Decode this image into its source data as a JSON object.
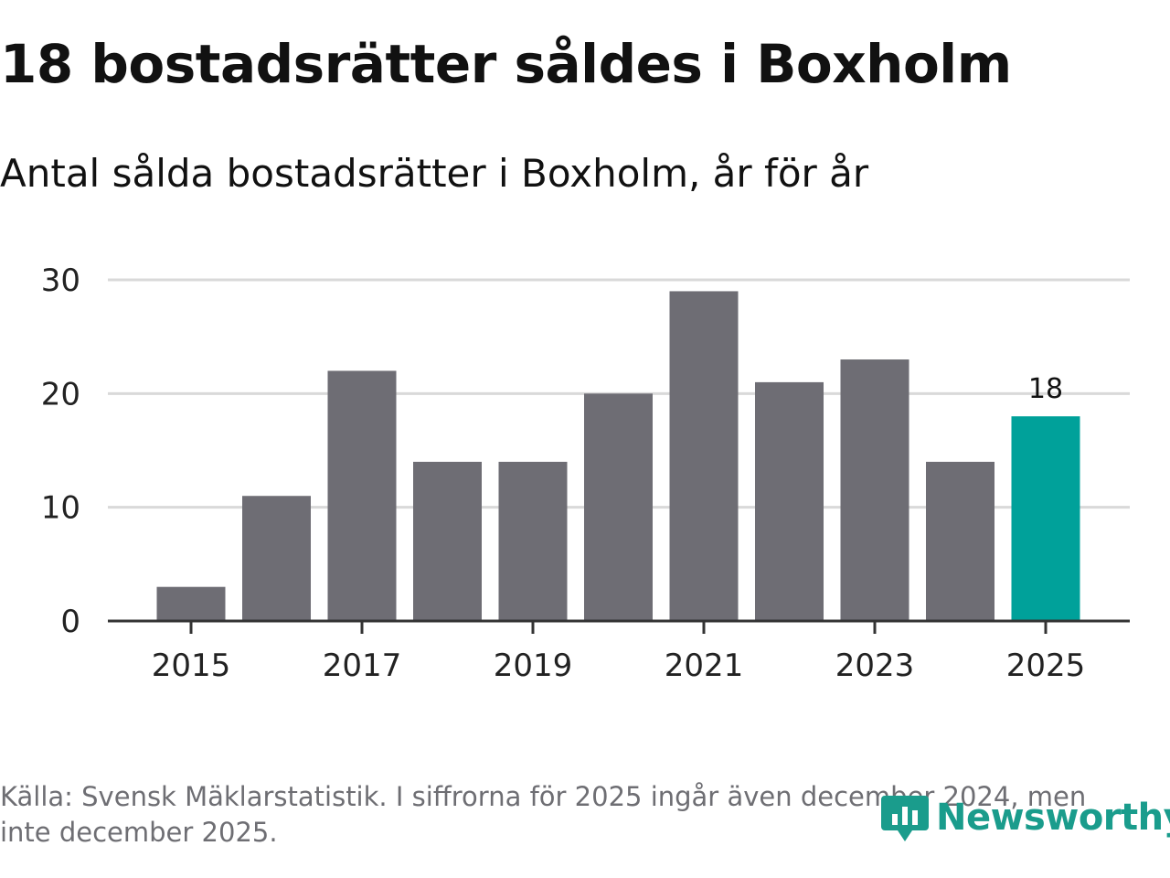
{
  "header": {
    "title": "18 bostadsrätter såldes i Boxholm",
    "subtitle": "Antal sålda bostadsrätter i Boxholm, år för år"
  },
  "chart_data": {
    "type": "bar",
    "title": "18 bostadsrätter såldes i Boxholm",
    "subtitle": "Antal sålda bostadsrätter i Boxholm, år för år",
    "categories": [
      "2015",
      "2016",
      "2017",
      "2018",
      "2019",
      "2020",
      "2021",
      "2022",
      "2023",
      "2024",
      "2025"
    ],
    "values": [
      3,
      11,
      22,
      14,
      14,
      20,
      29,
      21,
      23,
      14,
      18
    ],
    "x_tick_labels": [
      "2015",
      "2017",
      "2019",
      "2021",
      "2023",
      "2025"
    ],
    "y_ticks": [
      0,
      10,
      20,
      30
    ],
    "ylim": [
      0,
      30
    ],
    "xlabel": "",
    "ylabel": "",
    "grid": true,
    "highlight_category": "2025",
    "highlight_label": "18",
    "colors": {
      "bar": "#6e6d74",
      "highlight": "#00a19a",
      "grid": "#d9d9d9",
      "axis": "#333333"
    }
  },
  "footer": {
    "source": "Källa: Svensk Mäklarstatistik. I siffrorna för 2025 ingår även december 2024, men inte december 2025.",
    "logo_text": "Newsworthy",
    "logo_color": "#1a9c8c"
  }
}
